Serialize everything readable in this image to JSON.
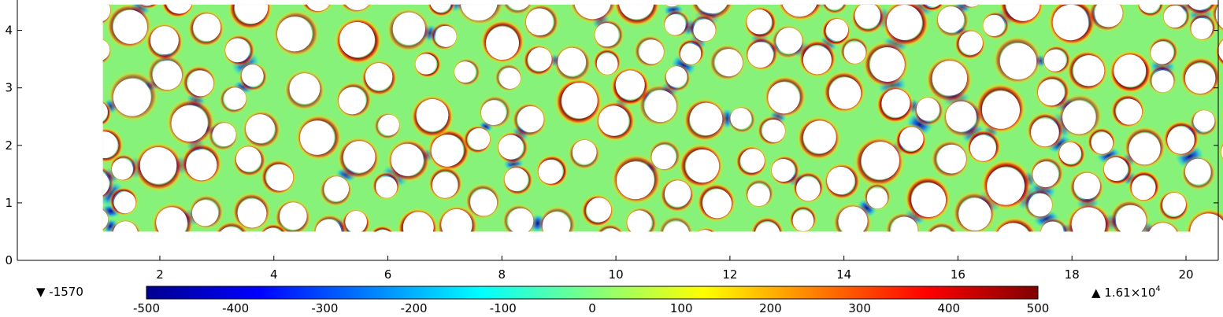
{
  "chart_data": {
    "type": "heatmap",
    "title": "",
    "xlabel": "",
    "ylabel": "",
    "x_ticks": [
      2,
      4,
      6,
      8,
      10,
      12,
      14,
      16,
      18,
      20
    ],
    "y_ticks": [
      0,
      1,
      2,
      3,
      4
    ],
    "xlim": [
      0,
      21.5
    ],
    "ylim": [
      0,
      4.5
    ],
    "domain_x": [
      1,
      21
    ],
    "domain_y": [
      0.5,
      4.45
    ],
    "colorbar": {
      "colormap": "jet",
      "range": [
        -500,
        500
      ],
      "ticks": [
        -500,
        -400,
        -300,
        -200,
        -100,
        0,
        100,
        200,
        300,
        400,
        500
      ],
      "min_label": "▼ -1570",
      "max_label_mantissa": "▲ 1.61×10",
      "max_label_exponent": "4"
    },
    "field": {
      "hole_radius_range": [
        0.18,
        0.33
      ],
      "background_value": 60,
      "high_rim_value": 500,
      "low_throat_value": -400
    }
  }
}
